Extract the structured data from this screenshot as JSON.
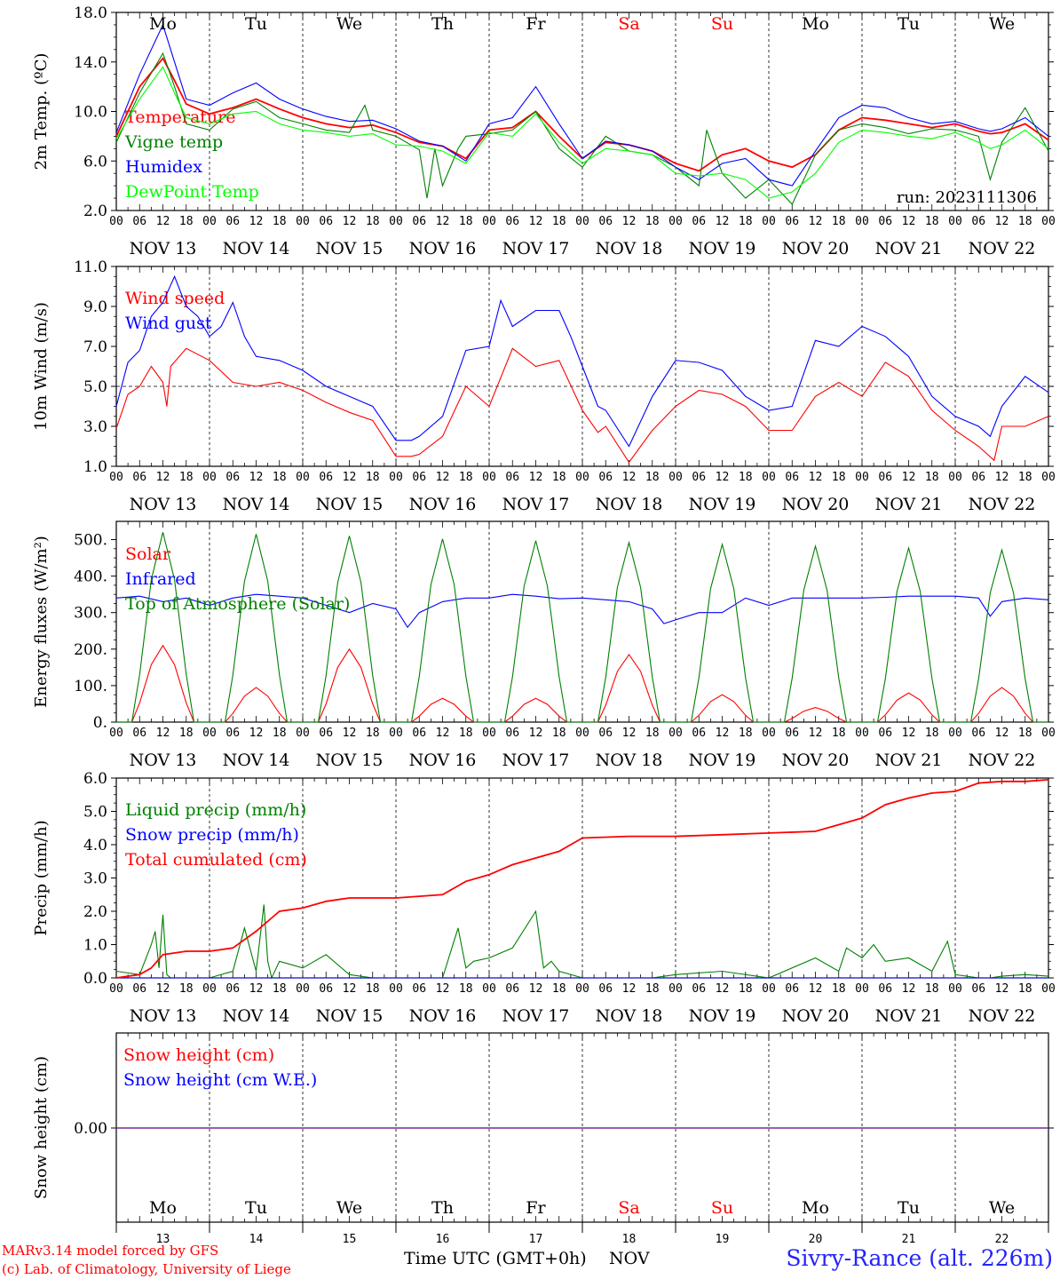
{
  "chart_data": [
    {
      "type": "line",
      "ylabel": "2m Temp. (ºC)",
      "ylim": [
        2,
        18
      ],
      "yticks": [
        "18.0",
        "14.0",
        "10.0",
        "6.0",
        "2.0"
      ],
      "yvalues": [
        18,
        14,
        10,
        6,
        2
      ],
      "annotation": "run: 2023111306",
      "series": [
        {
          "name": "Temperature",
          "color": "#ff0000",
          "x": [
            0,
            6,
            12,
            15,
            18,
            24,
            30,
            36,
            42,
            48,
            54,
            60,
            66,
            72,
            78,
            84,
            90,
            96,
            102,
            108,
            114,
            120,
            126,
            132,
            138,
            144,
            150,
            156,
            162,
            168,
            174,
            180,
            186,
            192,
            198,
            204,
            210,
            216,
            222,
            225,
            228,
            234,
            240
          ],
          "values": [
            8.0,
            12.0,
            14.3,
            12.5,
            10.6,
            9.8,
            10.3,
            11.0,
            10.2,
            9.5,
            9.0,
            8.7,
            8.9,
            8.3,
            7.5,
            7.2,
            6.2,
            8.5,
            8.7,
            10.0,
            8.0,
            6.2,
            7.5,
            7.3,
            6.8,
            5.8,
            5.2,
            6.5,
            7.0,
            6.0,
            5.5,
            6.5,
            8.5,
            9.5,
            9.3,
            9.0,
            8.7,
            9.0,
            8.4,
            8.2,
            8.3,
            9.0,
            7.7
          ]
        },
        {
          "name": "Vigne temp",
          "color": "#008000",
          "x": [
            0,
            6,
            12,
            15,
            18,
            24,
            30,
            36,
            42,
            48,
            54,
            60,
            64,
            66,
            72,
            78,
            80,
            82,
            84,
            88,
            90,
            96,
            102,
            108,
            114,
            120,
            126,
            132,
            138,
            144,
            150,
            152,
            156,
            162,
            168,
            174,
            180,
            186,
            192,
            198,
            204,
            210,
            216,
            222,
            225,
            228,
            234,
            240
          ],
          "values": [
            7.5,
            11.5,
            14.7,
            12.0,
            9.0,
            8.5,
            10.2,
            10.8,
            9.5,
            9.0,
            8.5,
            8.3,
            10.5,
            8.5,
            8.0,
            6.9,
            3.0,
            7.0,
            4.0,
            7.0,
            8.0,
            8.2,
            8.5,
            10.0,
            7.0,
            5.5,
            8.0,
            6.8,
            6.5,
            5.5,
            4.0,
            8.5,
            5.0,
            3.0,
            4.5,
            2.5,
            6.5,
            8.5,
            9.0,
            8.7,
            8.2,
            8.6,
            8.5,
            8.0,
            4.5,
            7.5,
            10.3,
            6.8
          ]
        },
        {
          "name": "Humidex",
          "color": "#0000ff",
          "x": [
            0,
            6,
            12,
            15,
            18,
            24,
            30,
            36,
            42,
            48,
            54,
            60,
            66,
            72,
            78,
            84,
            90,
            96,
            102,
            108,
            114,
            120,
            126,
            132,
            138,
            144,
            150,
            156,
            162,
            168,
            174,
            180,
            186,
            192,
            198,
            204,
            210,
            216,
            222,
            225,
            228,
            234,
            240
          ],
          "values": [
            8.3,
            13.0,
            17.0,
            14.0,
            11.0,
            10.5,
            11.5,
            12.3,
            11.0,
            10.2,
            9.6,
            9.2,
            9.3,
            8.6,
            7.6,
            7.2,
            6.0,
            9.0,
            9.5,
            12.0,
            9.0,
            6.2,
            7.6,
            7.3,
            6.8,
            5.5,
            4.5,
            5.8,
            6.2,
            4.5,
            4.0,
            6.8,
            9.5,
            10.5,
            10.3,
            9.5,
            9.0,
            9.2,
            8.6,
            8.4,
            8.6,
            9.5,
            8.0
          ]
        },
        {
          "name": "DewPoint Temp",
          "color": "#00ff00",
          "x": [
            0,
            6,
            12,
            15,
            18,
            24,
            30,
            36,
            42,
            48,
            54,
            60,
            66,
            72,
            78,
            84,
            90,
            96,
            102,
            108,
            114,
            120,
            126,
            132,
            138,
            144,
            150,
            156,
            162,
            168,
            174,
            180,
            186,
            192,
            198,
            204,
            210,
            216,
            222,
            225,
            228,
            234,
            240
          ],
          "values": [
            7.8,
            11.0,
            13.6,
            11.5,
            9.5,
            9.0,
            9.8,
            10.0,
            9.0,
            8.5,
            8.3,
            8.0,
            8.2,
            7.3,
            7.2,
            6.8,
            5.8,
            8.3,
            8.0,
            9.8,
            7.5,
            5.8,
            7.0,
            6.8,
            6.5,
            5.0,
            4.8,
            5.0,
            4.5,
            3.0,
            3.5,
            5.0,
            7.5,
            8.5,
            8.3,
            8.0,
            7.8,
            8.3,
            7.5,
            7.0,
            7.3,
            8.5,
            7.0
          ]
        }
      ]
    },
    {
      "type": "line",
      "ylabel": "10m Wind (m/s)",
      "ylim": [
        1,
        11
      ],
      "yticks": [
        "11.0",
        "9.0",
        "7.0",
        "5.0",
        "3.0",
        "1.0"
      ],
      "yvalues": [
        11,
        9,
        7,
        5,
        3,
        1
      ],
      "reference_line": 5,
      "series": [
        {
          "name": "Wind speed",
          "color": "#ff0000",
          "x": [
            0,
            3,
            6,
            9,
            12,
            13,
            14,
            18,
            24,
            30,
            36,
            42,
            48,
            54,
            60,
            66,
            72,
            76,
            78,
            84,
            90,
            96,
            102,
            108,
            114,
            120,
            124,
            126,
            132,
            138,
            144,
            150,
            156,
            162,
            168,
            174,
            180,
            186,
            192,
            198,
            204,
            210,
            216,
            222,
            226,
            228,
            234,
            240
          ],
          "values": [
            2.9,
            4.6,
            5.0,
            6.0,
            5.2,
            4.0,
            6.0,
            6.9,
            6.3,
            5.2,
            5.0,
            5.2,
            4.8,
            4.2,
            3.7,
            3.3,
            1.5,
            1.5,
            1.6,
            2.5,
            5.0,
            4.0,
            6.9,
            6.0,
            6.3,
            3.8,
            2.7,
            3.0,
            1.2,
            2.8,
            4.0,
            4.8,
            4.6,
            4.0,
            2.8,
            2.8,
            4.5,
            5.2,
            4.5,
            6.2,
            5.5,
            3.8,
            2.8,
            2.0,
            1.3,
            3.0,
            3.0,
            3.5
          ]
        },
        {
          "name": "Wind gust",
          "color": "#0000ff",
          "x": [
            0,
            3,
            6,
            9,
            12,
            15,
            18,
            21,
            24,
            27,
            30,
            33,
            36,
            42,
            48,
            54,
            60,
            66,
            72,
            76,
            78,
            84,
            90,
            96,
            99,
            102,
            108,
            114,
            117,
            120,
            124,
            126,
            132,
            138,
            144,
            150,
            156,
            162,
            168,
            174,
            180,
            186,
            192,
            198,
            204,
            210,
            216,
            222,
            225,
            228,
            234,
            240
          ],
          "values": [
            4.0,
            6.2,
            6.8,
            8.5,
            9.2,
            10.5,
            9.0,
            8.5,
            7.5,
            8.0,
            9.2,
            7.5,
            6.5,
            6.3,
            5.8,
            5.0,
            4.5,
            4.0,
            2.3,
            2.3,
            2.5,
            3.5,
            6.8,
            7.0,
            9.3,
            8.0,
            8.8,
            8.8,
            7.5,
            6.0,
            4.0,
            3.8,
            2.0,
            4.5,
            6.3,
            6.2,
            5.8,
            4.5,
            3.8,
            4.0,
            7.3,
            7.0,
            8.0,
            7.5,
            6.5,
            4.5,
            3.5,
            3.0,
            2.5,
            4.0,
            5.5,
            4.7
          ]
        }
      ]
    },
    {
      "type": "line",
      "ylabel": "Energy fluxes (W/m²)",
      "ylim": [
        0,
        550
      ],
      "yticks": [
        "500.",
        "400.",
        "300.",
        "200.",
        "100.",
        "0."
      ],
      "yvalues": [
        500,
        400,
        300,
        200,
        100,
        0
      ],
      "series": [
        {
          "name": "Solar",
          "color": "#ff0000",
          "peaks": [
            [
              12,
              210
            ],
            [
              36,
              95
            ],
            [
              60,
              200
            ],
            [
              84,
              65
            ],
            [
              108,
              65
            ],
            [
              132,
              185
            ],
            [
              156,
              75
            ],
            [
              180,
              40
            ],
            [
              204,
              80
            ],
            [
              228,
              95
            ]
          ]
        },
        {
          "name": "Infrared",
          "color": "#0000ff",
          "x": [
            0,
            6,
            12,
            18,
            24,
            30,
            36,
            42,
            48,
            54,
            60,
            66,
            72,
            75,
            78,
            84,
            90,
            96,
            102,
            108,
            114,
            120,
            126,
            132,
            138,
            141,
            144,
            150,
            156,
            162,
            168,
            174,
            180,
            186,
            192,
            198,
            204,
            210,
            216,
            222,
            225,
            228,
            234,
            240
          ],
          "values": [
            340,
            345,
            330,
            340,
            320,
            340,
            350,
            345,
            340,
            320,
            300,
            325,
            310,
            260,
            300,
            330,
            340,
            340,
            350,
            345,
            338,
            340,
            335,
            330,
            310,
            270,
            280,
            300,
            300,
            340,
            320,
            340,
            340,
            340,
            340,
            342,
            345,
            345,
            345,
            340,
            290,
            330,
            340,
            335
          ]
        },
        {
          "name": "Top of Atmosphere (Solar)",
          "color": "#008000",
          "peaks": [
            [
              12,
              520
            ],
            [
              36,
              515
            ],
            [
              60,
              510
            ],
            [
              84,
              502
            ],
            [
              108,
              497
            ],
            [
              132,
              492
            ],
            [
              156,
              487
            ],
            [
              180,
              482
            ],
            [
              204,
              477
            ],
            [
              228,
              472
            ]
          ]
        }
      ]
    },
    {
      "type": "line",
      "ylabel": "Precip (mm/h)",
      "ylim": [
        0,
        6
      ],
      "yticks": [
        "6.0",
        "5.0",
        "4.0",
        "3.0",
        "2.0",
        "1.0",
        "0.0"
      ],
      "yvalues": [
        6,
        5,
        4,
        3,
        2,
        1,
        0
      ],
      "series": [
        {
          "name": "Liquid precip (mm/h)",
          "color": "#008000",
          "x": [
            0,
            6,
            9,
            10,
            11,
            12,
            13,
            14,
            18,
            24,
            30,
            33,
            36,
            38,
            39,
            40,
            42,
            48,
            54,
            60,
            66,
            78,
            84,
            88,
            90,
            92,
            96,
            102,
            108,
            110,
            112,
            114,
            120,
            130,
            132,
            136,
            138,
            144,
            156,
            168,
            180,
            186,
            188,
            192,
            195,
            198,
            204,
            210,
            214,
            216,
            222,
            225,
            228,
            234,
            240
          ],
          "values": [
            0.2,
            0.1,
            1.0,
            1.4,
            0.3,
            1.9,
            0.1,
            0.0,
            0.0,
            0.0,
            0.2,
            1.5,
            0.2,
            2.2,
            0.5,
            0.0,
            0.5,
            0.3,
            0.7,
            0.1,
            0.0,
            0.0,
            0.0,
            1.5,
            0.3,
            0.5,
            0.6,
            0.9,
            2.0,
            0.3,
            0.5,
            0.2,
            0.0,
            0.0,
            0.0,
            0.0,
            0.0,
            0.1,
            0.2,
            0.0,
            0.6,
            0.2,
            0.9,
            0.6,
            1.0,
            0.5,
            0.6,
            0.2,
            1.1,
            0.1,
            0.0,
            0.0,
            0.05,
            0.1,
            0.05
          ]
        },
        {
          "name": "Snow precip (mm/h)",
          "color": "#0000ff",
          "x": [
            0,
            240
          ],
          "values": [
            0,
            0
          ]
        },
        {
          "name": "Total cumulated (cm)",
          "color": "#ff0000",
          "x": [
            0,
            6,
            9,
            12,
            18,
            24,
            30,
            36,
            40,
            42,
            48,
            54,
            60,
            66,
            72,
            78,
            84,
            90,
            96,
            102,
            108,
            114,
            120,
            132,
            144,
            156,
            168,
            180,
            186,
            192,
            198,
            204,
            210,
            216,
            222,
            228,
            234,
            240
          ],
          "values": [
            0.0,
            0.1,
            0.3,
            0.7,
            0.8,
            0.8,
            0.9,
            1.4,
            1.8,
            2.0,
            2.1,
            2.3,
            2.4,
            2.4,
            2.4,
            2.45,
            2.5,
            2.9,
            3.1,
            3.4,
            3.6,
            3.8,
            4.2,
            4.25,
            4.25,
            4.3,
            4.35,
            4.4,
            4.6,
            4.8,
            5.2,
            5.4,
            5.55,
            5.6,
            5.85,
            5.9,
            5.9,
            5.95
          ]
        }
      ]
    },
    {
      "type": "line",
      "ylabel": "Snow height (cm)",
      "yticks": [
        "0.00"
      ],
      "series": [
        {
          "name": "Snow height (cm)",
          "color": "#ff0000",
          "x": [
            0,
            240
          ],
          "values": [
            0,
            0
          ]
        },
        {
          "name": "Snow height (cm W.E.)",
          "color": "#0000ff",
          "x": [
            0,
            240
          ],
          "values": [
            0,
            0
          ]
        }
      ]
    }
  ],
  "hour_labels": [
    "00",
    "06",
    "12",
    "18"
  ],
  "date_labels": [
    "NOV 13",
    "NOV 14",
    "NOV 15",
    "NOV 16",
    "NOV 17",
    "NOV 18",
    "NOV 19",
    "NOV 20",
    "NOV 21",
    "NOV 22"
  ],
  "weekdays": [
    "Mo",
    "Tu",
    "We",
    "Th",
    "Fr",
    "Sa",
    "Su",
    "Mo",
    "Tu",
    "We"
  ],
  "weekend_color": "#ff0000",
  "day_numbers": [
    "13",
    "14",
    "15",
    "16",
    "17",
    "18",
    "19",
    "20",
    "21",
    "22"
  ],
  "xlabel": "Time UTC (GMT+0h)",
  "month_label": "NOV",
  "credit_line1": "MARv3.14 model forced by GFS",
  "credit_line2": "(c) Lab. of Climatology, University of Liege",
  "station": "Sivry-Rance (alt. 226m)"
}
